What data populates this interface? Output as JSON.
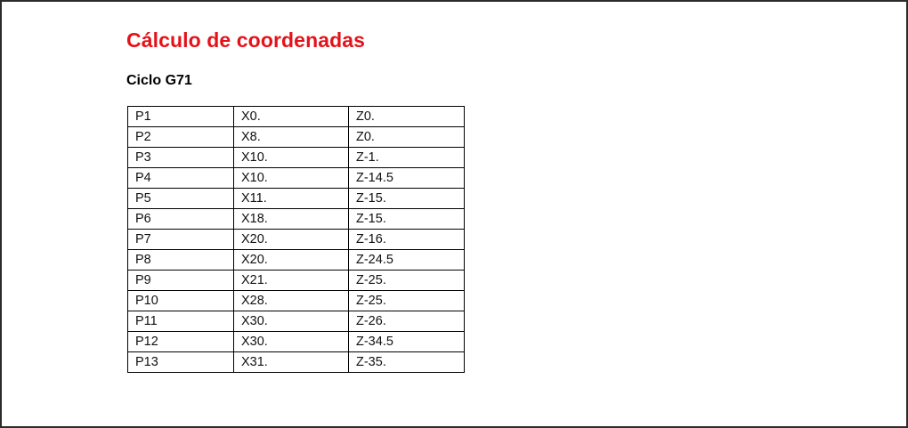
{
  "document": {
    "title": "Cálculo de coordenadas",
    "subtitle": "Ciclo G71",
    "accent_color": "#e3131a"
  },
  "table": {
    "rows": [
      {
        "point": "P1",
        "x": "X0.",
        "z": "Z0."
      },
      {
        "point": "P2",
        "x": "X8.",
        "z": "Z0."
      },
      {
        "point": "P3",
        "x": "X10.",
        "z": "Z-1."
      },
      {
        "point": "P4",
        "x": "X10.",
        "z": "Z-14.5"
      },
      {
        "point": "P5",
        "x": "X11.",
        "z": "Z-15."
      },
      {
        "point": "P6",
        "x": "X18.",
        "z": "Z-15."
      },
      {
        "point": "P7",
        "x": "X20.",
        "z": "Z-16."
      },
      {
        "point": "P8",
        "x": "X20.",
        "z": "Z-24.5"
      },
      {
        "point": "P9",
        "x": "X21.",
        "z": "Z-25."
      },
      {
        "point": "P10",
        "x": "X28.",
        "z": "Z-25."
      },
      {
        "point": "P11",
        "x": "X30.",
        "z": "Z-26."
      },
      {
        "point": "P12",
        "x": "X30.",
        "z": "Z-34.5"
      },
      {
        "point": "P13",
        "x": "X31.",
        "z": "Z-35."
      }
    ]
  }
}
